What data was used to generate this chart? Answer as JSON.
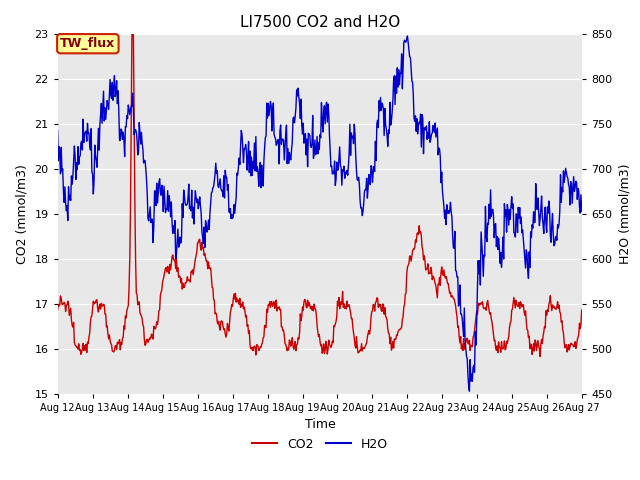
{
  "title": "LI7500 CO2 and H2O",
  "xlabel": "Time",
  "ylabel_left": "CO2 (mmol/m3)",
  "ylabel_right": "H2O (mmol/m3)",
  "ylim_left": [
    15.0,
    23.0
  ],
  "ylim_right": [
    450,
    850
  ],
  "yticks_left": [
    15.0,
    16.0,
    17.0,
    18.0,
    19.0,
    20.0,
    21.0,
    22.0,
    23.0
  ],
  "yticks_right": [
    450,
    500,
    550,
    600,
    650,
    700,
    750,
    800,
    850
  ],
  "xtick_labels": [
    "Aug 12",
    "Aug 13",
    "Aug 14",
    "Aug 15",
    "Aug 16",
    "Aug 17",
    "Aug 18",
    "Aug 19",
    "Aug 20",
    "Aug 21",
    "Aug 22",
    "Aug 23",
    "Aug 24",
    "Aug 25",
    "Aug 26",
    "Aug 27"
  ],
  "co2_color": "#cc0000",
  "h2o_color": "#0000cc",
  "background_color": "#e8e8e8",
  "legend_label_co2": "CO2",
  "legend_label_h2o": "H2O",
  "annotation_text": "TW_flux",
  "annotation_bg": "#ffff99",
  "annotation_edge": "#cc2200",
  "grid_color": "#ffffff",
  "linewidth": 1.0,
  "title_fontsize": 11,
  "axis_fontsize": 9,
  "tick_fontsize": 8
}
